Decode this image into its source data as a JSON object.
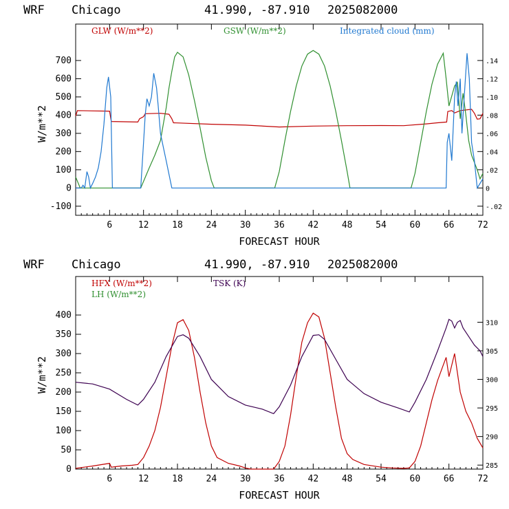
{
  "chart_data": [
    {
      "type": "line",
      "header": {
        "model": "WRF",
        "location": "Chicago",
        "coords": "41.990, -87.910",
        "run": "2025082000"
      },
      "xlabel": "FORECAST HOUR",
      "ylabel": "W/m**2",
      "xlim": [
        0,
        72
      ],
      "ylim": [
        -150,
        900
      ],
      "x_ticks": [
        6,
        12,
        18,
        24,
        30,
        36,
        42,
        48,
        54,
        60,
        66,
        72
      ],
      "y_ticks": [
        -100,
        0,
        100,
        200,
        300,
        400,
        500,
        600,
        700
      ],
      "y2lim": [
        -0.03,
        0.18
      ],
      "y2_ticks": [
        -0.02,
        0,
        0.02,
        0.04,
        0.06,
        0.08,
        0.1,
        0.12,
        0.14
      ],
      "y2_tick_labels": [
        "-.02",
        "0",
        ".02",
        ".04",
        ".06",
        ".08",
        ".10",
        ".12",
        ".14"
      ],
      "series": [
        {
          "name": "GLW (W/m**2)",
          "color": "#c00000",
          "axis": "left",
          "points": [
            [
              0,
              395
            ],
            [
              0.3,
              425
            ],
            [
              6,
              422
            ],
            [
              6.3,
              365
            ],
            [
              11,
              362
            ],
            [
              11.3,
              380
            ],
            [
              12,
              392
            ],
            [
              12.3,
              408
            ],
            [
              15,
              410
            ],
            [
              16.5,
              405
            ],
            [
              17,
              380
            ],
            [
              17.3,
              358
            ],
            [
              24,
              350
            ],
            [
              30,
              345
            ],
            [
              36,
              335
            ],
            [
              42,
              340
            ],
            [
              48,
              342
            ],
            [
              54,
              343
            ],
            [
              58,
              342
            ],
            [
              62,
              352
            ],
            [
              64,
              358
            ],
            [
              65.6,
              362
            ],
            [
              65.8,
              420
            ],
            [
              66.5,
              425
            ],
            [
              67,
              412
            ],
            [
              68,
              425
            ],
            [
              70,
              432
            ],
            [
              70.5,
              410
            ],
            [
              71,
              378
            ],
            [
              71.5,
              380
            ],
            [
              72,
              410
            ]
          ]
        },
        {
          "name": "GSW (W/m**2)",
          "color": "#2f8f2f",
          "axis": "left",
          "points": [
            [
              0,
              60
            ],
            [
              0.4,
              30
            ],
            [
              0.8,
              0
            ],
            [
              11.5,
              0
            ],
            [
              13,
              110
            ],
            [
              14,
              180
            ],
            [
              15,
              260
            ],
            [
              15.5,
              350
            ],
            [
              16,
              440
            ],
            [
              16.5,
              550
            ],
            [
              17,
              640
            ],
            [
              17.5,
              720
            ],
            [
              18,
              745
            ],
            [
              19,
              720
            ],
            [
              20,
              620
            ],
            [
              21,
              480
            ],
            [
              22,
              330
            ],
            [
              23,
              170
            ],
            [
              24,
              40
            ],
            [
              24.5,
              0
            ],
            [
              35.2,
              0
            ],
            [
              36,
              90
            ],
            [
              37,
              260
            ],
            [
              38,
              420
            ],
            [
              39,
              560
            ],
            [
              40,
              670
            ],
            [
              41,
              735
            ],
            [
              42,
              755
            ],
            [
              43,
              735
            ],
            [
              44,
              670
            ],
            [
              45,
              560
            ],
            [
              46,
              420
            ],
            [
              47,
              260
            ],
            [
              48,
              90
            ],
            [
              48.5,
              0
            ],
            [
              59.3,
              0
            ],
            [
              60,
              80
            ],
            [
              61,
              250
            ],
            [
              62,
              420
            ],
            [
              63,
              570
            ],
            [
              64,
              680
            ],
            [
              65,
              740
            ],
            [
              65.5,
              600
            ],
            [
              66,
              450
            ],
            [
              67,
              560
            ],
            [
              67.5,
              580
            ],
            [
              68,
              380
            ],
            [
              68.5,
              520
            ],
            [
              69,
              400
            ],
            [
              69.5,
              260
            ],
            [
              70,
              180
            ],
            [
              71,
              100
            ],
            [
              71.5,
              50
            ],
            [
              72,
              80
            ]
          ]
        },
        {
          "name": "Integrated cloud (mm)",
          "color": "#1f78d0",
          "axis": "right",
          "points": [
            [
              0,
              0
            ],
            [
              1,
              0
            ],
            [
              1.3,
              0.003
            ],
            [
              1.6,
              0
            ],
            [
              2,
              0.018
            ],
            [
              2.3,
              0.012
            ],
            [
              2.6,
              0
            ],
            [
              3,
              0.005
            ],
            [
              3.5,
              0.012
            ],
            [
              4,
              0.022
            ],
            [
              4.5,
              0.04
            ],
            [
              5,
              0.07
            ],
            [
              5.5,
              0.11
            ],
            [
              5.8,
              0.122
            ],
            [
              6.2,
              0.1
            ],
            [
              6.5,
              0
            ],
            [
              11.5,
              0
            ],
            [
              12,
              0.05
            ],
            [
              12.3,
              0.08
            ],
            [
              12.6,
              0.098
            ],
            [
              13,
              0.09
            ],
            [
              13.4,
              0.1
            ],
            [
              13.8,
              0.126
            ],
            [
              14.3,
              0.11
            ],
            [
              14.6,
              0.09
            ],
            [
              15,
              0.06
            ],
            [
              15.5,
              0.045
            ],
            [
              16,
              0.03
            ],
            [
              17,
              0
            ],
            [
              65.5,
              0
            ],
            [
              65.7,
              0.05
            ],
            [
              66,
              0.06
            ],
            [
              66.5,
              0.03
            ],
            [
              67,
              0.1
            ],
            [
              67.3,
              0.117
            ],
            [
              67.6,
              0.09
            ],
            [
              68,
              0.12
            ],
            [
              68.3,
              0.06
            ],
            [
              68.7,
              0.1
            ],
            [
              69.2,
              0.148
            ],
            [
              69.6,
              0.12
            ],
            [
              70,
              0.05
            ],
            [
              70.5,
              0.03
            ],
            [
              71,
              0
            ],
            [
              72,
              0.01
            ]
          ]
        }
      ]
    },
    {
      "type": "line",
      "header": {
        "model": "WRF",
        "location": "Chicago",
        "coords": "41.990, -87.910",
        "run": "2025082000"
      },
      "xlabel": "FORECAST HOUR",
      "ylabel": "W/m**2",
      "xlim": [
        0,
        72
      ],
      "ylim": [
        0,
        500
      ],
      "x_ticks": [
        6,
        12,
        18,
        24,
        30,
        36,
        42,
        48,
        54,
        60,
        66,
        72
      ],
      "y_ticks": [
        0,
        50,
        100,
        150,
        200,
        250,
        300,
        350,
        400
      ],
      "y2lim": [
        284.3,
        318
      ],
      "y2_ticks": [
        285,
        290,
        295,
        300,
        305,
        310
      ],
      "y2_tick_labels": [
        "285",
        "290",
        "295",
        "300",
        "305",
        "310"
      ],
      "series": [
        {
          "name": "HFX (W/m**2)",
          "color": "#c00000",
          "axis": "left",
          "points": [
            [
              0,
              2
            ],
            [
              3,
              8
            ],
            [
              6,
              15
            ],
            [
              6.3,
              5
            ],
            [
              8,
              8
            ],
            [
              10,
              10
            ],
            [
              11,
              12
            ],
            [
              12,
              30
            ],
            [
              13,
              60
            ],
            [
              14,
              100
            ],
            [
              15,
              160
            ],
            [
              16,
              240
            ],
            [
              17,
              320
            ],
            [
              18,
              380
            ],
            [
              19,
              388
            ],
            [
              20,
              360
            ],
            [
              21,
              290
            ],
            [
              22,
              200
            ],
            [
              23,
              120
            ],
            [
              24,
              60
            ],
            [
              25,
              30
            ],
            [
              27,
              15
            ],
            [
              29,
              8
            ],
            [
              30,
              3
            ],
            [
              31,
              0
            ],
            [
              35,
              0
            ],
            [
              36,
              20
            ],
            [
              37,
              60
            ],
            [
              38,
              140
            ],
            [
              39,
              240
            ],
            [
              40,
              330
            ],
            [
              41,
              380
            ],
            [
              42,
              405
            ],
            [
              43,
              395
            ],
            [
              44,
              340
            ],
            [
              45,
              250
            ],
            [
              46,
              160
            ],
            [
              47,
              80
            ],
            [
              48,
              40
            ],
            [
              49,
              25
            ],
            [
              51,
              12
            ],
            [
              54,
              5
            ],
            [
              56,
              3
            ],
            [
              58,
              2
            ],
            [
              59,
              3
            ],
            [
              60,
              20
            ],
            [
              61,
              60
            ],
            [
              62,
              120
            ],
            [
              63,
              180
            ],
            [
              64,
              230
            ],
            [
              65,
              270
            ],
            [
              65.5,
              290
            ],
            [
              66,
              240
            ],
            [
              67,
              300
            ],
            [
              67.5,
              250
            ],
            [
              68,
              200
            ],
            [
              69,
              150
            ],
            [
              70,
              120
            ],
            [
              71,
              80
            ],
            [
              72,
              55
            ]
          ]
        },
        {
          "name": "LH (W/m**2)",
          "color": "#2f8f2f",
          "axis": "left",
          "points": []
        },
        {
          "name": "TSK (K)",
          "color": "#3c0050",
          "axis": "right",
          "points": [
            [
              0,
              299.5
            ],
            [
              3,
              299.2
            ],
            [
              6,
              298.3
            ],
            [
              9,
              296.5
            ],
            [
              11,
              295.5
            ],
            [
              12,
              296.5
            ],
            [
              14,
              299.5
            ],
            [
              16,
              304
            ],
            [
              18,
              307.5
            ],
            [
              19,
              307.8
            ],
            [
              20,
              307.2
            ],
            [
              22,
              304
            ],
            [
              24,
              300
            ],
            [
              27,
              297
            ],
            [
              30,
              295.5
            ],
            [
              33,
              294.8
            ],
            [
              35,
              294
            ],
            [
              36,
              295.2
            ],
            [
              38,
              299
            ],
            [
              40,
              304
            ],
            [
              42,
              307.7
            ],
            [
              43,
              307.8
            ],
            [
              44,
              307
            ],
            [
              46,
              303.5
            ],
            [
              48,
              300
            ],
            [
              51,
              297.5
            ],
            [
              54,
              296
            ],
            [
              57,
              295
            ],
            [
              59,
              294.3
            ],
            [
              60,
              296
            ],
            [
              62,
              300
            ],
            [
              64,
              305
            ],
            [
              65.5,
              309
            ],
            [
              66,
              310.5
            ],
            [
              66.5,
              310.2
            ],
            [
              67,
              309
            ],
            [
              67.5,
              310
            ],
            [
              68,
              310.3
            ],
            [
              68.5,
              309
            ],
            [
              69.5,
              307.5
            ],
            [
              70.5,
              306
            ],
            [
              71.5,
              305
            ],
            [
              72,
              304
            ]
          ]
        }
      ]
    }
  ]
}
